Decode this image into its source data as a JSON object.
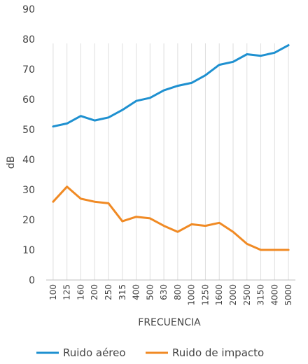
{
  "chart_data": {
    "type": "line",
    "title": "",
    "xlabel": "FRECUENCIA",
    "ylabel": "dB",
    "ylim": [
      0,
      90
    ],
    "yticks": [
      0,
      10,
      20,
      30,
      40,
      50,
      60,
      70,
      80,
      90
    ],
    "grid": "vertical",
    "legend_position": "bottom",
    "categories": [
      "100",
      "125",
      "160",
      "200",
      "250",
      "315",
      "400",
      "500",
      "630",
      "800",
      "1000",
      "1250",
      "1600",
      "2000",
      "2500",
      "3150",
      "4000",
      "5000"
    ],
    "series": [
      {
        "name": "Ruido aéreo",
        "color": "#1e90d0",
        "values": [
          51,
          52,
          54.5,
          53,
          54,
          56.5,
          59.5,
          60.5,
          63,
          64.5,
          65.5,
          68,
          71.5,
          72.5,
          75,
          74.5,
          75.5,
          78
        ]
      },
      {
        "name": "Ruido de impacto",
        "color": "#f08a24",
        "values": [
          26,
          31,
          27,
          26,
          25.5,
          19.5,
          21,
          20.5,
          18,
          16,
          18.5,
          18,
          19,
          16,
          12,
          10,
          10,
          10
        ]
      }
    ]
  }
}
